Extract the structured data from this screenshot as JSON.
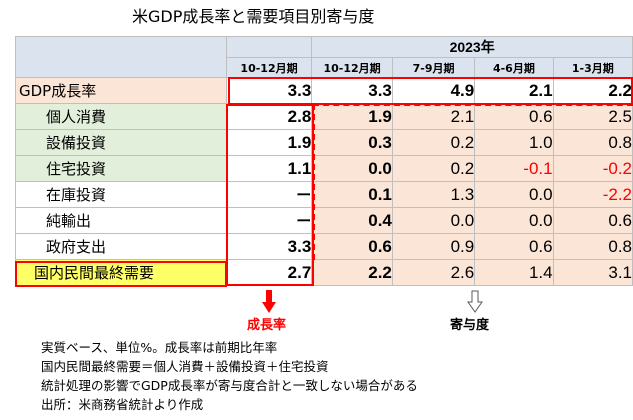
{
  "title": "米GDP成長率と需要項目別寄与度",
  "table": {
    "year": "2023年",
    "periods": [
      "10-12月期",
      "10-12月期",
      "7-9月期",
      "4-6月期",
      "1-3月期"
    ],
    "rows": [
      {
        "label": "GDP成長率",
        "values": [
          "3.3",
          "3.3",
          "4.9",
          "2.1",
          "2.2"
        ]
      },
      {
        "label": "個人消費",
        "values": [
          "2.8",
          "1.9",
          "2.1",
          "0.6",
          "2.5"
        ]
      },
      {
        "label": "設備投資",
        "values": [
          "1.9",
          "0.3",
          "0.2",
          "1.0",
          "0.8"
        ]
      },
      {
        "label": "住宅投資",
        "values": [
          "1.1",
          "0.0",
          "0.2",
          "-0.1",
          "-0.2"
        ]
      },
      {
        "label": "在庫投資",
        "values": [
          "ー",
          "0.1",
          "1.3",
          "0.0",
          "-2.2"
        ]
      },
      {
        "label": "純輸出",
        "values": [
          "ー",
          "0.4",
          "0.0",
          "0.0",
          "0.6"
        ]
      },
      {
        "label": "政府支出",
        "values": [
          "3.3",
          "0.6",
          "0.9",
          "0.6",
          "0.8"
        ]
      },
      {
        "label": "国内民間最終需要",
        "values": [
          "2.7",
          "2.2",
          "2.6",
          "1.4",
          "3.1"
        ]
      }
    ]
  },
  "annotations": {
    "growth_label": "成長率",
    "contribution_label": "寄与度"
  },
  "notes": [
    "実質ベース、単位%。成長率は前期比年率",
    "国内民間最終需要＝個人消費＋設備投資＋住宅投資",
    "統計処理の影響でGDP成長率が寄与度合計と一致しない場合がある",
    "出所：米商務省統計より作成"
  ],
  "colors": {
    "header_bg": "#dbe3ef",
    "peach": "#fbe5d6",
    "green": "#e2efda",
    "yellow": "#ffff66",
    "highlight_red": "#ff0000",
    "negative_red": "#ff0000"
  }
}
